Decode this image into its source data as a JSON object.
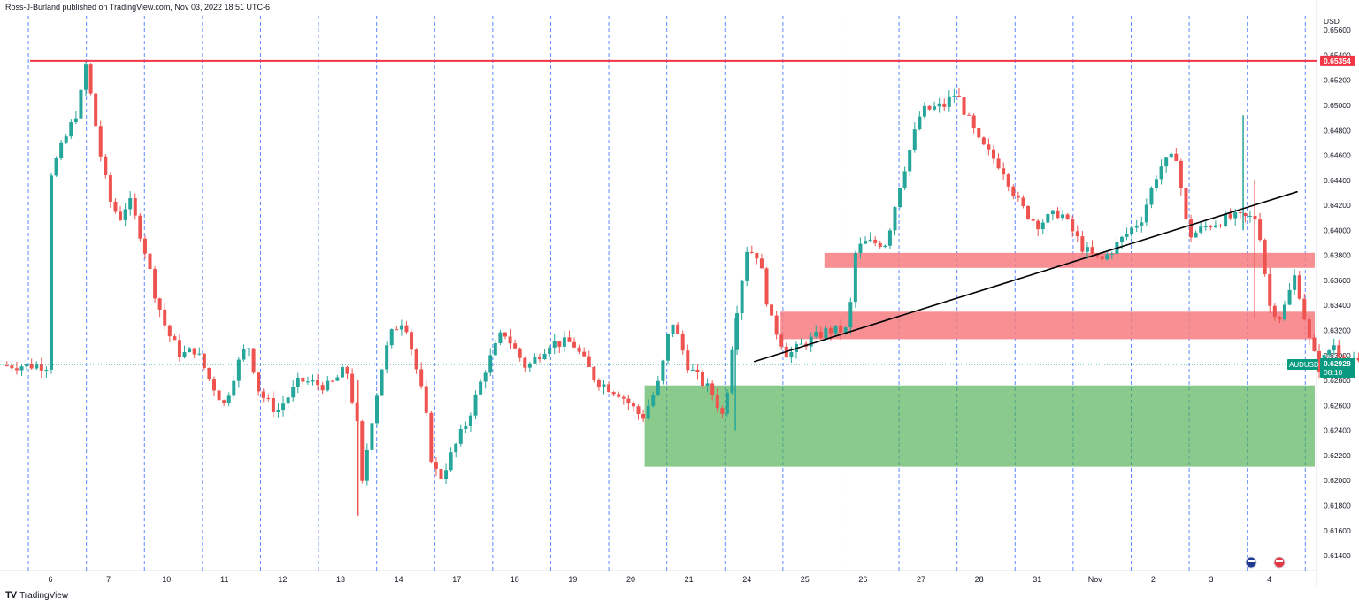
{
  "header": {
    "publisher_line": "Ross-J-Burland published on TradingView.com, Nov 03, 2022 18:51 UTC-6"
  },
  "footer": {
    "logo_text": "TV",
    "brand": "TradingView"
  },
  "colors": {
    "up": "#26a69a",
    "down": "#ef5350",
    "resistance_line": "#f23645",
    "resistance_zone": "#f77c80",
    "demand_zone": "#4caf50",
    "trendline": "#000000",
    "session_separator": "#2962ff",
    "last_price_label": "#089981"
  },
  "chart_data": {
    "type": "candlestick",
    "symbol": "AUDUSD",
    "y_axis_unit": "USD",
    "ylim": [
      0.6128,
      0.657
    ],
    "y_ticks": [
      "0.65600",
      "0.65400",
      "0.65200",
      "0.65000",
      "0.64800",
      "0.64600",
      "0.64400",
      "0.64200",
      "0.64000",
      "0.63800",
      "0.63600",
      "0.63400",
      "0.63200",
      "0.63000",
      "0.62800",
      "0.62600",
      "0.62400",
      "0.62200",
      "0.62000",
      "0.61800",
      "0.61600",
      "0.61400"
    ],
    "x_labels": [
      "6",
      "7",
      "10",
      "11",
      "12",
      "13",
      "14",
      "17",
      "18",
      "19",
      "20",
      "21",
      "24",
      "25",
      "26",
      "27",
      "28",
      "31",
      "Nov",
      "2",
      "3",
      "4"
    ],
    "last_price": "0.62928",
    "last_price_countdown": "08:10",
    "resistance_level_label": "0.65354",
    "resistance_level": 0.65354,
    "zones": [
      {
        "name": "resistance-zone-upper",
        "from": 0.637,
        "to": 0.6382,
        "start_label": "25"
      },
      {
        "name": "resistance-zone-lower",
        "from": 0.6313,
        "to": 0.6335,
        "start_label": "24"
      },
      {
        "name": "demand-zone",
        "from": 0.6211,
        "to": 0.6276,
        "start_label": "21"
      }
    ],
    "trendline": {
      "from": {
        "label": "24",
        "price": 0.6295
      },
      "to": {
        "label": "4",
        "price": 0.6431
      }
    },
    "close_path": [
      [
        0,
        0.6445
      ],
      [
        0.5,
        0.65
      ],
      [
        0.6,
        0.6535
      ],
      [
        0.9,
        0.645
      ],
      [
        1.05,
        0.642
      ],
      [
        1.2,
        0.641
      ],
      [
        1.35,
        0.6425
      ],
      [
        1.6,
        0.639
      ],
      [
        1.8,
        0.635
      ],
      [
        2.0,
        0.632
      ],
      [
        2.25,
        0.63
      ],
      [
        2.5,
        0.6305
      ],
      [
        2.75,
        0.628
      ],
      [
        3.0,
        0.626
      ],
      [
        3.2,
        0.629
      ],
      [
        3.4,
        0.631
      ],
      [
        3.6,
        0.627
      ],
      [
        3.9,
        0.6255
      ],
      [
        4.3,
        0.628
      ],
      [
        4.8,
        0.6275
      ],
      [
        5.1,
        0.629
      ],
      [
        5.3,
        0.624
      ],
      [
        5.35,
        0.619
      ],
      [
        5.5,
        0.624
      ],
      [
        5.75,
        0.63
      ],
      [
        5.9,
        0.632
      ],
      [
        6.1,
        0.633
      ],
      [
        6.3,
        0.629
      ],
      [
        6.45,
        0.626
      ],
      [
        6.55,
        0.622
      ],
      [
        6.7,
        0.62
      ],
      [
        6.85,
        0.6215
      ],
      [
        7.2,
        0.625
      ],
      [
        7.5,
        0.629
      ],
      [
        7.8,
        0.632
      ],
      [
        8.2,
        0.629
      ],
      [
        8.6,
        0.631
      ],
      [
        9.0,
        0.631
      ],
      [
        9.4,
        0.628
      ],
      [
        9.8,
        0.627
      ],
      [
        10.2,
        0.625
      ],
      [
        10.5,
        0.628
      ],
      [
        10.7,
        0.633
      ],
      [
        10.85,
        0.631
      ],
      [
        11.0,
        0.629
      ],
      [
        11.4,
        0.627
      ],
      [
        11.6,
        0.625
      ],
      [
        11.8,
        0.633
      ],
      [
        12.0,
        0.6385
      ],
      [
        12.2,
        0.638
      ],
      [
        12.4,
        0.633
      ],
      [
        12.7,
        0.63
      ],
      [
        13.0,
        0.631
      ],
      [
        13.4,
        0.632
      ],
      [
        13.75,
        0.632
      ],
      [
        13.85,
        0.638
      ],
      [
        14.0,
        0.639
      ],
      [
        14.4,
        0.639
      ],
      [
        14.65,
        0.644
      ],
      [
        15.0,
        0.6495
      ],
      [
        15.4,
        0.65
      ],
      [
        15.6,
        0.651
      ],
      [
        16.0,
        0.647
      ],
      [
        16.4,
        0.645
      ],
      [
        16.7,
        0.642
      ],
      [
        17.0,
        0.6405
      ],
      [
        17.4,
        0.6415
      ],
      [
        17.8,
        0.6385
      ],
      [
        18.1,
        0.6375
      ],
      [
        18.4,
        0.639
      ],
      [
        18.8,
        0.641
      ],
      [
        19.1,
        0.645
      ],
      [
        19.4,
        0.646
      ],
      [
        19.6,
        0.6395
      ],
      [
        20.0,
        0.6405
      ],
      [
        20.3,
        0.641
      ],
      [
        20.8,
        0.641
      ],
      [
        21.0,
        0.634
      ],
      [
        21.2,
        0.633
      ],
      [
        21.45,
        0.6365
      ],
      [
        21.7,
        0.631
      ],
      [
        21.85,
        0.629
      ],
      [
        22.1,
        0.631
      ],
      [
        22.3,
        0.6295
      ],
      [
        22.7,
        0.6292
      ]
    ]
  }
}
